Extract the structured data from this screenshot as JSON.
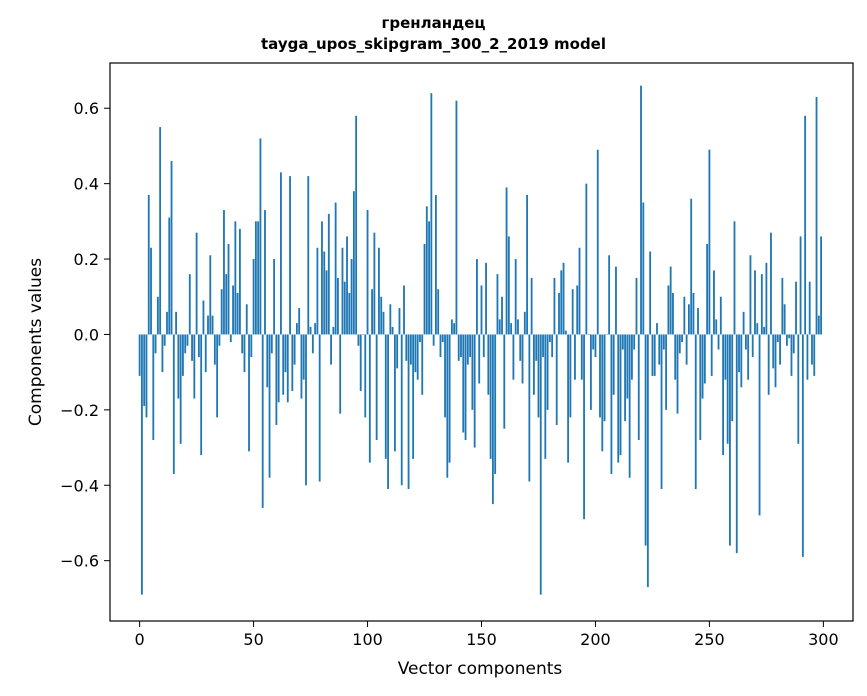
{
  "chart_data": {
    "type": "bar",
    "title": "гренландец",
    "subtitle": "tayga_upos_skipgram_300_2_2019 model",
    "xlabel": "Vector components",
    "ylabel": "Components values",
    "xlim": [
      -13,
      313
    ],
    "ylim": [
      -0.76,
      0.72
    ],
    "xticks": [
      0,
      50,
      100,
      150,
      200,
      250,
      300
    ],
    "yticks": [
      -0.6,
      -0.4,
      -0.2,
      0.0,
      0.2,
      0.4,
      0.6
    ],
    "ytick_labels": [
      "−0.6",
      "−0.4",
      "−0.2",
      "0.0",
      "0.2",
      "0.4",
      "0.6"
    ],
    "bar_color": "#1f77b4",
    "grid": false,
    "values": [
      -0.11,
      -0.69,
      -0.19,
      -0.22,
      0.37,
      0.23,
      -0.28,
      -0.05,
      0.1,
      0.55,
      -0.1,
      -0.03,
      0.06,
      0.31,
      0.46,
      -0.37,
      0.06,
      -0.17,
      -0.29,
      -0.11,
      -0.05,
      -0.03,
      0.16,
      -0.07,
      -0.17,
      0.27,
      -0.06,
      -0.32,
      0.09,
      -0.1,
      0.05,
      0.21,
      0.05,
      -0.08,
      -0.22,
      -0.03,
      0.12,
      0.33,
      0.16,
      0.24,
      -0.02,
      0.13,
      0.3,
      0.11,
      0.28,
      -0.05,
      -0.1,
      0.08,
      -0.31,
      -0.06,
      0.2,
      0.3,
      0.3,
      0.52,
      -0.46,
      0.33,
      -0.14,
      -0.38,
      -0.05,
      0.2,
      -0.24,
      -0.18,
      0.43,
      -0.16,
      -0.1,
      -0.18,
      0.42,
      -0.15,
      -0.08,
      0.03,
      0.07,
      -0.17,
      -0.12,
      -0.4,
      0.42,
      0.02,
      -0.05,
      0.03,
      0.23,
      -0.39,
      0.3,
      0.22,
      0.17,
      0.32,
      -0.08,
      0.02,
      0.35,
      0.15,
      -0.21,
      0.23,
      0.14,
      0.26,
      0.11,
      0.2,
      0.38,
      0.58,
      -0.03,
      -0.15,
      0.0,
      -0.22,
      0.33,
      -0.34,
      0.12,
      0.27,
      -0.28,
      0.23,
      0.1,
      0.06,
      -0.33,
      -0.41,
      0.08,
      0.02,
      -0.31,
      -0.09,
      0.07,
      -0.4,
      0.13,
      -0.07,
      -0.41,
      -0.08,
      -0.33,
      -0.1,
      -0.12,
      -0.02,
      -0.16,
      0.24,
      0.34,
      0.3,
      0.64,
      -0.03,
      0.37,
      0.12,
      -0.06,
      -0.02,
      -0.22,
      -0.38,
      -0.34,
      0.04,
      0.03,
      0.62,
      -0.07,
      -0.06,
      -0.26,
      -0.28,
      -0.08,
      -0.06,
      -0.2,
      -0.3,
      0.2,
      -0.13,
      0.13,
      -0.06,
      0.19,
      -0.16,
      -0.33,
      -0.45,
      -0.37,
      0.16,
      0.04,
      0.1,
      -0.25,
      0.39,
      0.26,
      0.03,
      -0.12,
      0.2,
      0.04,
      -0.07,
      -0.13,
      0.06,
      0.37,
      -0.39,
      0.15,
      -0.16,
      -0.07,
      -0.22,
      -0.69,
      -0.06,
      -0.33,
      -0.2,
      -0.02,
      -0.06,
      0.15,
      -0.24,
      0.11,
      0.17,
      0.19,
      0.01,
      -0.34,
      -0.22,
      0.12,
      -0.12,
      0.13,
      0.23,
      -0.12,
      -0.49,
      0.4,
      0.0,
      -0.2,
      -0.04,
      -0.06,
      0.49,
      -0.22,
      -0.31,
      -0.23,
      0.0,
      0.21,
      -0.37,
      -0.16,
      0.18,
      -0.34,
      -0.32,
      -0.04,
      -0.23,
      -0.17,
      -0.38,
      -0.12,
      -0.04,
      0.15,
      -0.28,
      0.66,
      0.35,
      -0.56,
      -0.67,
      0.22,
      -0.11,
      -0.11,
      0.03,
      -0.08,
      -0.41,
      -0.04,
      -0.2,
      0.13,
      0.18,
      0.11,
      -0.12,
      -0.21,
      -0.05,
      -0.02,
      0.1,
      -0.08,
      0.08,
      0.36,
      0.11,
      -0.41,
      0.07,
      -0.28,
      -0.17,
      -0.13,
      0.24,
      0.49,
      -0.11,
      0.17,
      0.04,
      -0.04,
      0.1,
      -0.32,
      -0.12,
      -0.29,
      -0.56,
      -0.23,
      0.3,
      -0.58,
      -0.1,
      -0.14,
      0.06,
      -0.04,
      -0.12,
      0.21,
      -0.06,
      0.17,
      0.03,
      -0.48,
      0.16,
      0.02,
      0.19,
      -0.16,
      0.27,
      -0.09,
      -0.14,
      -0.02,
      -0.08,
      0.15,
      0.08,
      -0.03,
      -0.01,
      -0.11,
      -0.05,
      0.14,
      -0.29,
      0.26,
      -0.59,
      0.58,
      -0.12,
      0.14,
      -0.08,
      -0.11,
      0.63,
      0.05,
      0.26
    ]
  }
}
